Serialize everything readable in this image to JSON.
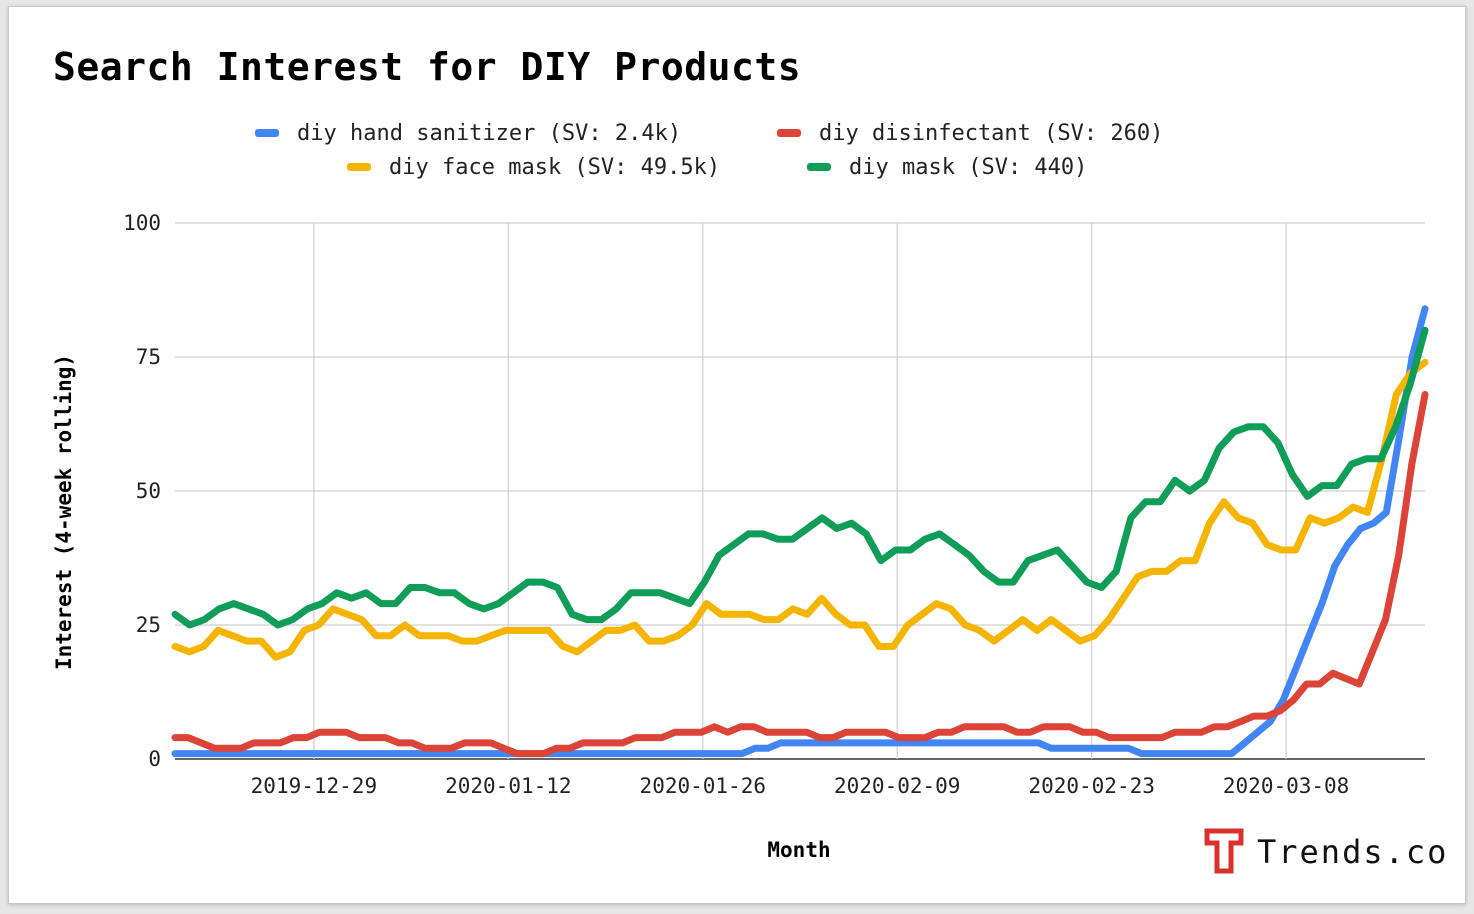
{
  "chart_data": {
    "type": "line",
    "title": "Search Interest for DIY Products",
    "xlabel": "Month",
    "ylabel": "Interest (4-week rolling)",
    "ylim": [
      0,
      100
    ],
    "yticks": [
      "0",
      "25",
      "50",
      "75",
      "100"
    ],
    "x_start_date": "2019-12-19",
    "x_end_date": "2020-03-18",
    "xticks": [
      "2019-12-29",
      "2020-01-12",
      "2020-01-26",
      "2020-02-09",
      "2020-02-23",
      "2020-03-08"
    ],
    "grid": true,
    "legend_position": "top",
    "series": [
      {
        "name": "diy hand sanitizer (SV: 2.4k)",
        "color": "#4285f4",
        "values": [
          1,
          1,
          1,
          1,
          1,
          1,
          1,
          1,
          1,
          1,
          1,
          1,
          1,
          1,
          1,
          1,
          1,
          1,
          1,
          1,
          1,
          1,
          1,
          1,
          1,
          1,
          1,
          1,
          1,
          1,
          1,
          1,
          1,
          1,
          1,
          1,
          1,
          1,
          1,
          1,
          1,
          1,
          1,
          1,
          1,
          2,
          2,
          3,
          3,
          3,
          3,
          3,
          3,
          3,
          3,
          3,
          3,
          3,
          3,
          3,
          3,
          3,
          3,
          3,
          3,
          3,
          3,
          3,
          2,
          2,
          2,
          2,
          2,
          2,
          2,
          1,
          1,
          1,
          1,
          1,
          1,
          1,
          1,
          3,
          5,
          7,
          11,
          17,
          23,
          29,
          36,
          40,
          43,
          44,
          46,
          60,
          75,
          84
        ]
      },
      {
        "name": "diy disinfectant (SV: 260)",
        "color": "#db4437",
        "values": [
          4,
          4,
          3,
          2,
          2,
          2,
          3,
          3,
          3,
          4,
          4,
          5,
          5,
          5,
          4,
          4,
          4,
          3,
          3,
          2,
          2,
          2,
          3,
          3,
          3,
          2,
          1,
          1,
          1,
          2,
          2,
          3,
          3,
          3,
          3,
          4,
          4,
          4,
          5,
          5,
          5,
          6,
          5,
          6,
          6,
          5,
          5,
          5,
          5,
          4,
          4,
          5,
          5,
          5,
          5,
          4,
          4,
          4,
          5,
          5,
          6,
          6,
          6,
          6,
          5,
          5,
          6,
          6,
          6,
          5,
          5,
          4,
          4,
          4,
          4,
          4,
          5,
          5,
          5,
          6,
          6,
          7,
          8,
          8,
          9,
          11,
          14,
          14,
          16,
          15,
          14,
          20,
          26,
          38,
          55,
          68
        ]
      },
      {
        "name": "diy face mask (SV: 49.5k)",
        "color": "#f4b400",
        "values": [
          21,
          20,
          21,
          24,
          23,
          22,
          22,
          19,
          20,
          24,
          25,
          28,
          27,
          26,
          23,
          23,
          25,
          23,
          23,
          23,
          22,
          22,
          23,
          24,
          24,
          24,
          24,
          21,
          20,
          22,
          24,
          24,
          25,
          22,
          22,
          23,
          25,
          29,
          27,
          27,
          27,
          26,
          26,
          28,
          27,
          30,
          27,
          25,
          25,
          21,
          21,
          25,
          27,
          29,
          28,
          25,
          24,
          22,
          24,
          26,
          24,
          26,
          24,
          22,
          23,
          26,
          30,
          34,
          35,
          35,
          37,
          37,
          44,
          48,
          45,
          44,
          40,
          39,
          39,
          45,
          44,
          45,
          47,
          46,
          56,
          68,
          72,
          74
        ]
      },
      {
        "name": "diy mask (SV: 440)",
        "color": "#0f9d58",
        "values": [
          27,
          25,
          26,
          28,
          29,
          28,
          27,
          25,
          26,
          28,
          29,
          31,
          30,
          31,
          29,
          29,
          32,
          32,
          31,
          31,
          29,
          28,
          29,
          31,
          33,
          33,
          32,
          27,
          26,
          26,
          28,
          31,
          31,
          31,
          30,
          29,
          33,
          38,
          40,
          42,
          42,
          41,
          41,
          43,
          45,
          43,
          44,
          42,
          37,
          39,
          39,
          41,
          42,
          40,
          38,
          35,
          33,
          33,
          37,
          38,
          39,
          36,
          33,
          32,
          35,
          45,
          48,
          48,
          52,
          50,
          52,
          58,
          61,
          62,
          62,
          59,
          53,
          49,
          51,
          51,
          55,
          56,
          56,
          62,
          70,
          80
        ]
      }
    ]
  },
  "brand": {
    "name": "Trends.co",
    "logo_color": "#d9322b"
  }
}
